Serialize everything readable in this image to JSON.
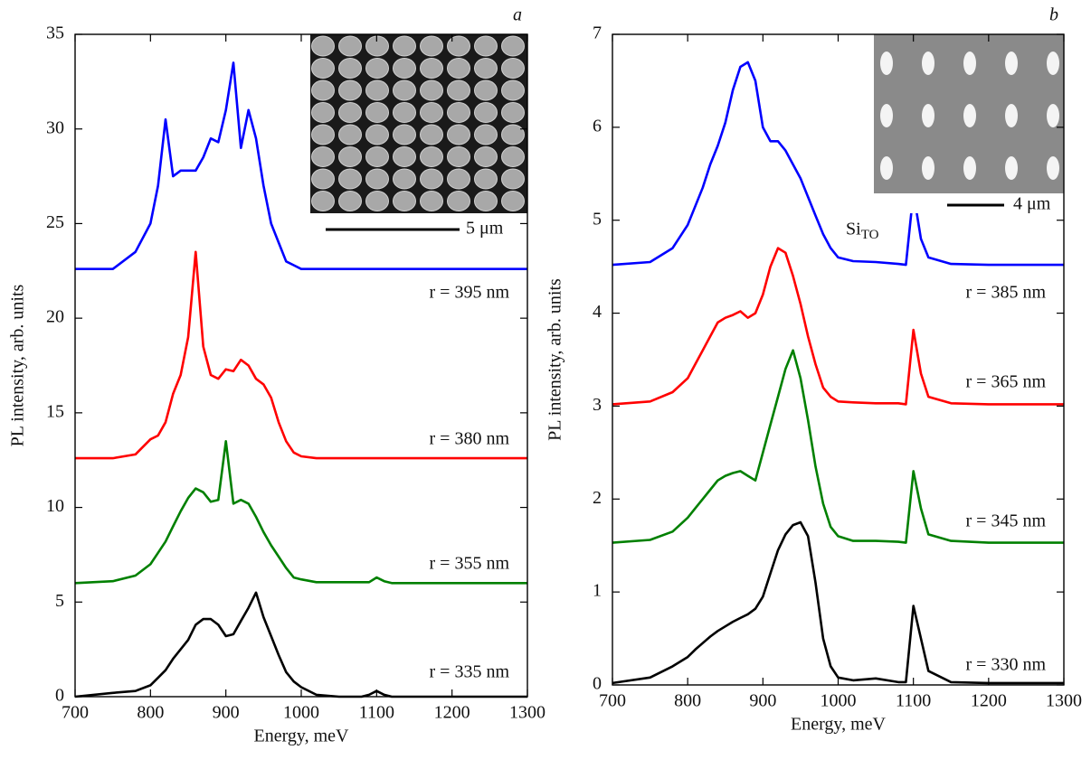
{
  "chart_data": [
    {
      "type": "line",
      "panel_label": "a",
      "x_label": "Energy, meV",
      "y_label": "PL intensity, arb. units",
      "x": [
        700,
        750,
        780,
        800,
        810,
        820,
        830,
        840,
        850,
        860,
        870,
        880,
        890,
        900,
        910,
        920,
        930,
        940,
        950,
        960,
        970,
        980,
        990,
        1000,
        1020,
        1050,
        1080,
        1090,
        1100,
        1110,
        1120,
        1150,
        1200,
        1250,
        1300
      ],
      "xlim": [
        700,
        1300
      ],
      "xticks": [
        700,
        800,
        900,
        1000,
        1100,
        1200,
        1300
      ],
      "ylim": [
        0,
        35
      ],
      "yticks": [
        0,
        5,
        10,
        15,
        20,
        25,
        30,
        35
      ],
      "inset_scale": "5 μm",
      "series": [
        {
          "name": "r = 395 nm",
          "color": "#0000ff",
          "values": [
            22.6,
            22.6,
            23.5,
            25,
            27,
            30.5,
            27.5,
            27.8,
            27.8,
            27.8,
            28.5,
            29.5,
            29.3,
            31,
            33.5,
            29,
            31,
            29.5,
            27,
            25,
            24,
            23,
            22.8,
            22.6,
            22.6,
            22.6,
            22.6,
            22.6,
            22.6,
            22.6,
            22.6,
            22.6,
            22.6,
            22.6,
            22.6
          ]
        },
        {
          "name": "r = 380 nm",
          "color": "#ff0000",
          "values": [
            12.6,
            12.6,
            12.8,
            13.6,
            13.8,
            14.5,
            16,
            17,
            19,
            23.5,
            18.5,
            17,
            16.8,
            17.3,
            17.2,
            17.8,
            17.5,
            16.8,
            16.5,
            15.8,
            14.5,
            13.5,
            12.9,
            12.7,
            12.6,
            12.6,
            12.6,
            12.6,
            12.6,
            12.6,
            12.6,
            12.6,
            12.6,
            12.6,
            12.6
          ]
        },
        {
          "name": "r = 355 nm",
          "color": "#008000",
          "values": [
            6,
            6.1,
            6.4,
            7,
            7.6,
            8.2,
            9,
            9.8,
            10.5,
            11,
            10.8,
            10.3,
            10.4,
            13.5,
            10.2,
            10.4,
            10.2,
            9.5,
            8.7,
            8,
            7.4,
            6.8,
            6.3,
            6.2,
            6.05,
            6.05,
            6.05,
            6.05,
            6.3,
            6.1,
            6,
            6,
            6,
            6,
            6
          ]
        },
        {
          "name": "r = 335 nm",
          "color": "#000000",
          "values": [
            0,
            0.2,
            0.3,
            0.6,
            1,
            1.4,
            2,
            2.5,
            3,
            3.8,
            4.1,
            4.1,
            3.8,
            3.2,
            3.3,
            4,
            4.7,
            5.5,
            4.2,
            3.2,
            2.2,
            1.3,
            0.8,
            0.5,
            0.1,
            0,
            0,
            0.1,
            0.3,
            0.1,
            0,
            0,
            0,
            0,
            0
          ]
        }
      ]
    },
    {
      "type": "line",
      "panel_label": "b",
      "x_label": "Energy, meV",
      "y_label": "PL intensity, arb. units",
      "x": [
        700,
        750,
        780,
        800,
        810,
        820,
        830,
        840,
        850,
        860,
        870,
        880,
        890,
        900,
        910,
        920,
        930,
        940,
        950,
        960,
        970,
        980,
        990,
        1000,
        1020,
        1050,
        1080,
        1090,
        1100,
        1110,
        1120,
        1150,
        1200,
        1250,
        1300
      ],
      "xlim": [
        700,
        1300
      ],
      "xticks": [
        700,
        800,
        900,
        1000,
        1100,
        1200,
        1300
      ],
      "ylim": [
        0,
        7
      ],
      "yticks": [
        0,
        1,
        2,
        3,
        4,
        5,
        6,
        7
      ],
      "inset_scale": "4 μm",
      "annotation": {
        "text": "Si",
        "subscript": "TO"
      },
      "series": [
        {
          "name": "r = 385 nm",
          "color": "#0000ff",
          "values": [
            4.52,
            4.55,
            4.7,
            4.95,
            5.15,
            5.35,
            5.6,
            5.8,
            6.05,
            6.4,
            6.65,
            6.7,
            6.5,
            6.0,
            5.85,
            5.85,
            5.75,
            5.6,
            5.45,
            5.25,
            5.05,
            4.85,
            4.7,
            4.6,
            4.56,
            4.55,
            4.53,
            4.52,
            5.3,
            4.8,
            4.6,
            4.53,
            4.52,
            4.52,
            4.52
          ]
        },
        {
          "name": "r = 365 nm",
          "color": "#ff0000",
          "values": [
            3.02,
            3.05,
            3.15,
            3.3,
            3.45,
            3.6,
            3.75,
            3.9,
            3.95,
            3.98,
            4.02,
            3.95,
            4.0,
            4.2,
            4.5,
            4.7,
            4.65,
            4.4,
            4.1,
            3.75,
            3.45,
            3.2,
            3.1,
            3.05,
            3.04,
            3.03,
            3.03,
            3.02,
            3.82,
            3.35,
            3.1,
            3.03,
            3.02,
            3.02,
            3.02
          ]
        },
        {
          "name": "r = 345 nm",
          "color": "#008000",
          "values": [
            1.53,
            1.56,
            1.65,
            1.8,
            1.9,
            2.0,
            2.1,
            2.2,
            2.25,
            2.28,
            2.3,
            2.25,
            2.2,
            2.5,
            2.8,
            3.1,
            3.4,
            3.6,
            3.3,
            2.85,
            2.35,
            1.95,
            1.7,
            1.6,
            1.55,
            1.55,
            1.54,
            1.53,
            2.3,
            1.9,
            1.62,
            1.55,
            1.53,
            1.53,
            1.53
          ]
        },
        {
          "name": "r = 330 nm",
          "color": "#000000",
          "values": [
            0.02,
            0.08,
            0.2,
            0.3,
            0.38,
            0.45,
            0.52,
            0.58,
            0.63,
            0.68,
            0.72,
            0.76,
            0.82,
            0.95,
            1.2,
            1.45,
            1.62,
            1.72,
            1.75,
            1.6,
            1.1,
            0.5,
            0.2,
            0.08,
            0.05,
            0.07,
            0.03,
            0.03,
            0.85,
            0.5,
            0.15,
            0.03,
            0.02,
            0.02,
            0.02
          ]
        }
      ]
    }
  ]
}
